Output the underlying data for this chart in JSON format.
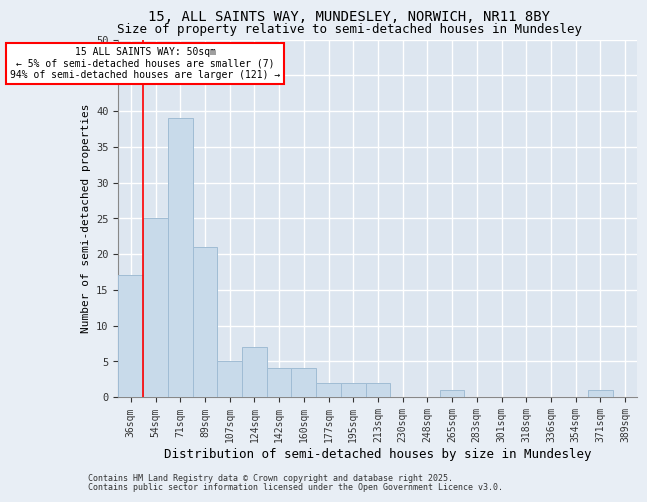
{
  "title1": "15, ALL SAINTS WAY, MUNDESLEY, NORWICH, NR11 8BY",
  "title2": "Size of property relative to semi-detached houses in Mundesley",
  "xlabel": "Distribution of semi-detached houses by size in Mundesley",
  "ylabel": "Number of semi-detached properties",
  "categories": [
    "36sqm",
    "54sqm",
    "71sqm",
    "89sqm",
    "107sqm",
    "124sqm",
    "142sqm",
    "160sqm",
    "177sqm",
    "195sqm",
    "213sqm",
    "230sqm",
    "248sqm",
    "265sqm",
    "283sqm",
    "301sqm",
    "318sqm",
    "336sqm",
    "354sqm",
    "371sqm",
    "389sqm"
  ],
  "values": [
    17,
    25,
    39,
    21,
    5,
    7,
    4,
    4,
    2,
    2,
    2,
    0,
    0,
    1,
    0,
    0,
    0,
    0,
    0,
    1,
    0
  ],
  "bar_color": "#c8daea",
  "bar_edge_color": "#a0bcd4",
  "annotation_line1": "15 ALL SAINTS WAY: 50sqm",
  "annotation_line2": "← 5% of semi-detached houses are smaller (7)",
  "annotation_line3": "94% of semi-detached houses are larger (121) →",
  "annotation_box_color": "white",
  "annotation_box_edge_color": "red",
  "property_line_color": "red",
  "property_line_x": 0.5,
  "ylim": [
    0,
    50
  ],
  "yticks": [
    0,
    5,
    10,
    15,
    20,
    25,
    30,
    35,
    40,
    45,
    50
  ],
  "footer_line1": "Contains HM Land Registry data © Crown copyright and database right 2025.",
  "footer_line2": "Contains public sector information licensed under the Open Government Licence v3.0.",
  "background_color": "#e8eef5",
  "plot_bg_color": "#dde6f0",
  "grid_color": "white",
  "title1_fontsize": 10,
  "title2_fontsize": 9,
  "ylabel_fontsize": 8,
  "xlabel_fontsize": 9,
  "tick_fontsize": 7.5,
  "xtick_fontsize": 7,
  "footer_fontsize": 6
}
